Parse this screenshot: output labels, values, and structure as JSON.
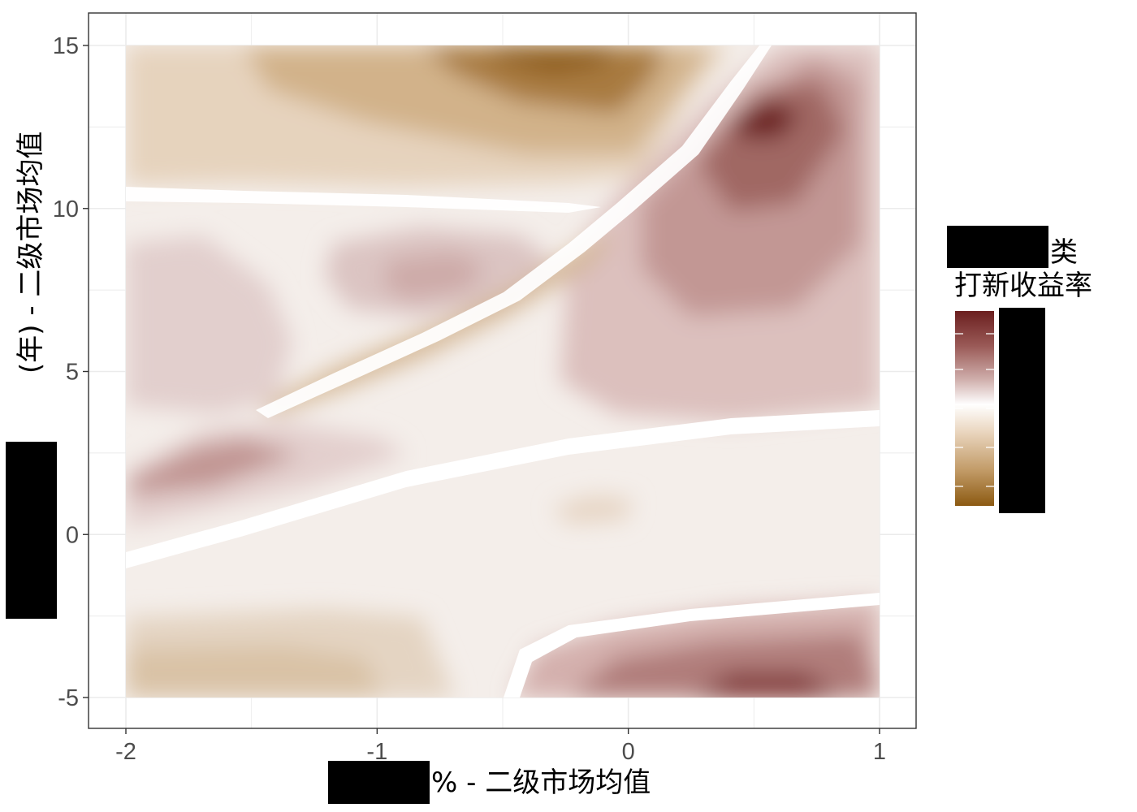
{
  "chart_data": {
    "type": "heatmap",
    "subtype": "filled-contour",
    "x_axis": {
      "title_visible": "% - 二级市场均值",
      "title_redacted": true,
      "ticks": [
        -2,
        -1,
        0,
        1
      ],
      "tick_labels": [
        "-2",
        "-1",
        "0",
        "1"
      ],
      "range": [
        -2,
        1
      ]
    },
    "y_axis": {
      "title_visible": "(年) - 二级市场均值",
      "title_redacted": true,
      "ticks": [
        -5,
        0,
        5,
        10,
        15
      ],
      "tick_labels": [
        "-5",
        "0",
        "5",
        "10",
        "15"
      ],
      "range": [
        -5,
        15
      ]
    },
    "legend": {
      "title_line1": "类",
      "title_line2": "打新收益率",
      "title_redacted": true,
      "labels_redacted": true,
      "placement": "right",
      "gradient": [
        "#6b1f1f",
        "#9a5a57",
        "#c9a3a0",
        "#ffffff",
        "#ead6bf",
        "#c19a66",
        "#8c5a12"
      ]
    },
    "grid": true,
    "contour_regions": [
      {
        "label": "top dark brown peak",
        "x": -0.3,
        "y": 15,
        "level": -1.0
      },
      {
        "label": "top-right dark red peak",
        "x": 0.55,
        "y": 12.6,
        "level": 1.0
      },
      {
        "label": "bottom-right dark red peak",
        "x": 0.6,
        "y": -4.8,
        "level": 1.0
      },
      {
        "label": "left red ridge",
        "x": -1.85,
        "y": 1.9,
        "level": 0.55
      },
      {
        "label": "mid red bump",
        "x": -0.9,
        "y": 7.9,
        "level": 0.4
      },
      {
        "label": "left red plateau",
        "x": -1.8,
        "y": 6.2,
        "level": 0.25
      },
      {
        "label": "diagonal brown streak",
        "x": -1.0,
        "y": 5.3,
        "level": -0.35
      },
      {
        "label": "central light band",
        "x": -0.2,
        "y": 1.0,
        "level": -0.08
      },
      {
        "label": "small brown spot",
        "x": -0.1,
        "y": 0.8,
        "level": -0.15
      },
      {
        "label": "bottom-left brown",
        "x": -1.8,
        "y": -4.2,
        "level": -0.25
      }
    ],
    "colors": {
      "panel_border": "#333333",
      "gridline": "#ebebeb",
      "redaction": "#000000"
    }
  }
}
